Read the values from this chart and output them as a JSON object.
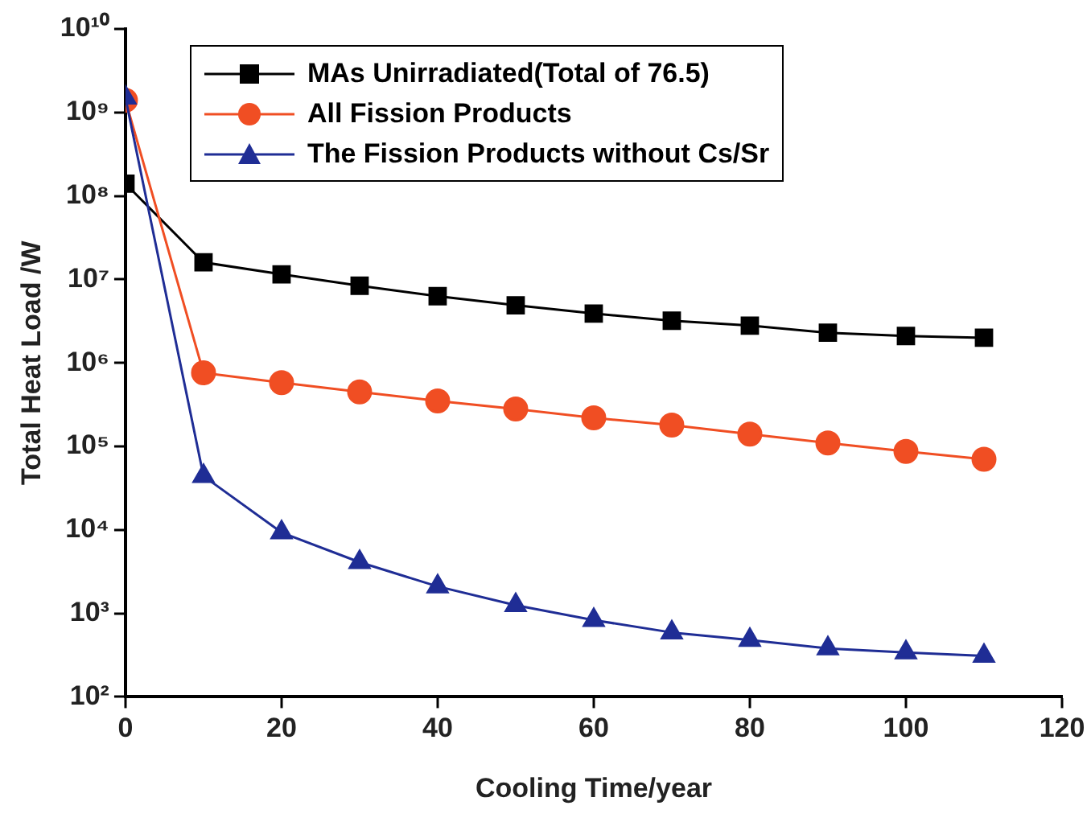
{
  "chart_data": {
    "type": "line",
    "xlabel": "Cooling Time/year",
    "ylabel": "Total Heat Load /W",
    "x": [
      0,
      10,
      20,
      30,
      40,
      50,
      60,
      70,
      80,
      90,
      100,
      110
    ],
    "series": [
      {
        "name": "MAs Unirradiated(Total of 76.5)",
        "color": "#000000",
        "marker": "square",
        "values": [
          140000000.0,
          16000000.0,
          11500000.0,
          8400000.0,
          6300000.0,
          4900000.0,
          3900000.0,
          3200000.0,
          2800000.0,
          2300000.0,
          2100000.0,
          2000000.0
        ]
      },
      {
        "name": "All Fission Products",
        "color": "#f04e23",
        "marker": "circle",
        "values": [
          1400000000.0,
          760000.0,
          580000.0,
          450000.0,
          350000.0,
          280000.0,
          220000.0,
          180000.0,
          140000.0,
          110000.0,
          87000.0,
          70000.0
        ]
      },
      {
        "name": "The Fission Products without Cs/Sr",
        "color": "#1f2d95",
        "marker": "triangle",
        "values": [
          1500000000.0,
          44000.0,
          9300.0,
          4100.0,
          2100.0,
          1250.0,
          830,
          590,
          480,
          380,
          340,
          310
        ]
      }
    ],
    "log": "y",
    "xlim": [
      0,
      120
    ],
    "xticks": [
      0,
      20,
      40,
      60,
      80,
      100,
      120
    ],
    "ylim": [
      100,
      10000000000.0
    ],
    "yticks": [
      {
        "value": 100,
        "label": "10²"
      },
      {
        "value": 1000,
        "label": "10³"
      },
      {
        "value": 10000,
        "label": "10⁴"
      },
      {
        "value": 100000,
        "label": "10⁵"
      },
      {
        "value": 1000000,
        "label": "10⁶"
      },
      {
        "value": 10000000,
        "label": "10⁷"
      },
      {
        "value": 100000000,
        "label": "10⁸"
      },
      {
        "value": 1000000000,
        "label": "10⁹"
      },
      {
        "value": 10000000000,
        "label": "10¹⁰"
      }
    ],
    "grid": false,
    "legend": "top",
    "line_style": "solid"
  }
}
